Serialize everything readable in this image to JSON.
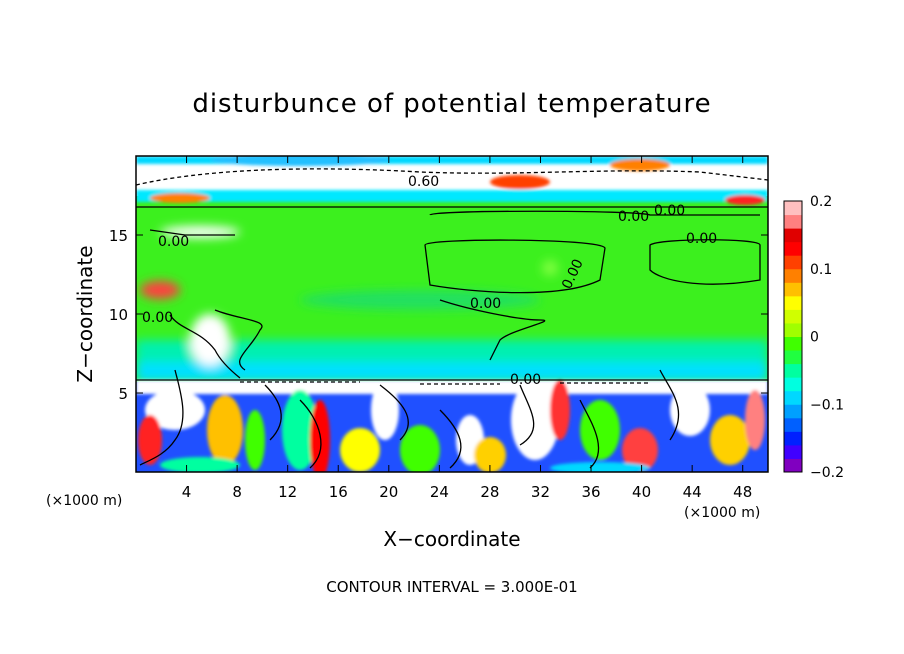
{
  "chart_data": {
    "type": "heatmap",
    "title": "disturbunce of potential temperature",
    "xlabel": "X−coordinate",
    "ylabel": "Z−coordinate",
    "x_unit_left": "(×1000 m)",
    "x_unit_right": "(×1000 m)",
    "xlim": [
      0,
      50
    ],
    "ylim": [
      0,
      20
    ],
    "x_ticks": [
      4,
      8,
      12,
      16,
      20,
      24,
      28,
      32,
      36,
      40,
      44,
      48
    ],
    "y_ticks": [
      5,
      10,
      15
    ],
    "colorbar": {
      "range": [
        -0.2,
        0.2
      ],
      "ticks": [
        "0.2",
        "0.1",
        "0",
        "−0.1",
        "−0.2"
      ],
      "colors": [
        "#8000c0",
        "#4000ff",
        "#0020ff",
        "#0060ff",
        "#00a0ff",
        "#00d8ff",
        "#00ffe0",
        "#00ffa0",
        "#20ff40",
        "#40ff00",
        "#a0ff00",
        "#d0ff00",
        "#ffff00",
        "#ffc000",
        "#ff8000",
        "#ff4000",
        "#ff0000",
        "#e00000",
        "#ff8080",
        "#ffc0c0"
      ]
    },
    "contour_labels": [
      "0.00",
      "0.00",
      "0.00",
      "0.00",
      "0.00",
      "0.00",
      "0.60",
      "0.00",
      "0.00"
    ],
    "footer": "CONTOUR INTERVAL = 3.000E-01"
  }
}
